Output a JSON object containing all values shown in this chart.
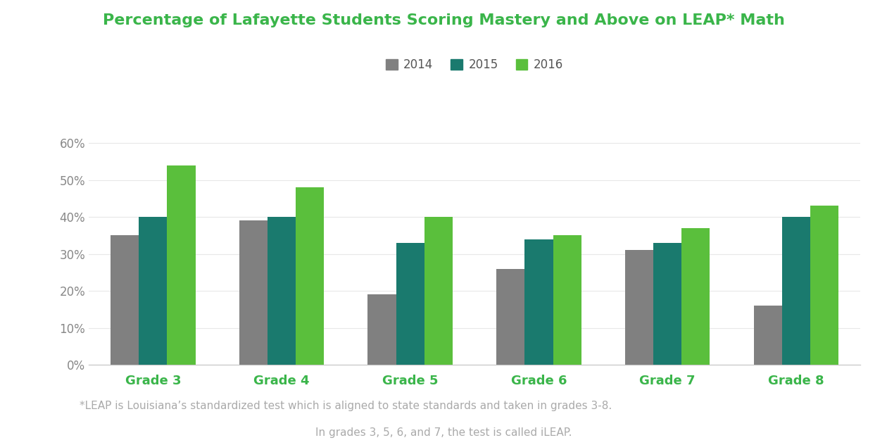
{
  "title": "Percentage of Lafayette Students Scoring Mastery and Above on LEAP* Math",
  "title_color": "#3ab54a",
  "title_fontsize": 16,
  "grades": [
    "Grade 3",
    "Grade 4",
    "Grade 5",
    "Grade 6",
    "Grade 7",
    "Grade 8"
  ],
  "years": [
    "2014",
    "2015",
    "2016"
  ],
  "values": {
    "2014": [
      0.35,
      0.39,
      0.19,
      0.26,
      0.31,
      0.16
    ],
    "2015": [
      0.4,
      0.4,
      0.33,
      0.34,
      0.33,
      0.4
    ],
    "2016": [
      0.54,
      0.48,
      0.4,
      0.35,
      0.37,
      0.43
    ]
  },
  "bar_colors": {
    "2014": "#808080",
    "2015": "#1a7a6e",
    "2016": "#5abf3c"
  },
  "ylim": [
    0,
    0.65
  ],
  "yticks": [
    0.0,
    0.1,
    0.2,
    0.3,
    0.4,
    0.5,
    0.6
  ],
  "ytick_labels": [
    "0%",
    "10%",
    "20%",
    "30%",
    "40%",
    "50%",
    "60%"
  ],
  "grade_label_color": "#3ab54a",
  "grade_label_fontsize": 13,
  "footnote_line1": "*LEAP is Louisiana’s standardized test which is aligned to state standards and taken in grades 3-8.",
  "footnote_line2": "In grades 3, 5, 6, and 7, the test is called iLEAP.",
  "footnote_color": "#aaaaaa",
  "footnote_fontsize": 11,
  "background_color": "#ffffff",
  "bar_width": 0.22,
  "legend_fontsize": 12,
  "legend_label_color": "#555555"
}
